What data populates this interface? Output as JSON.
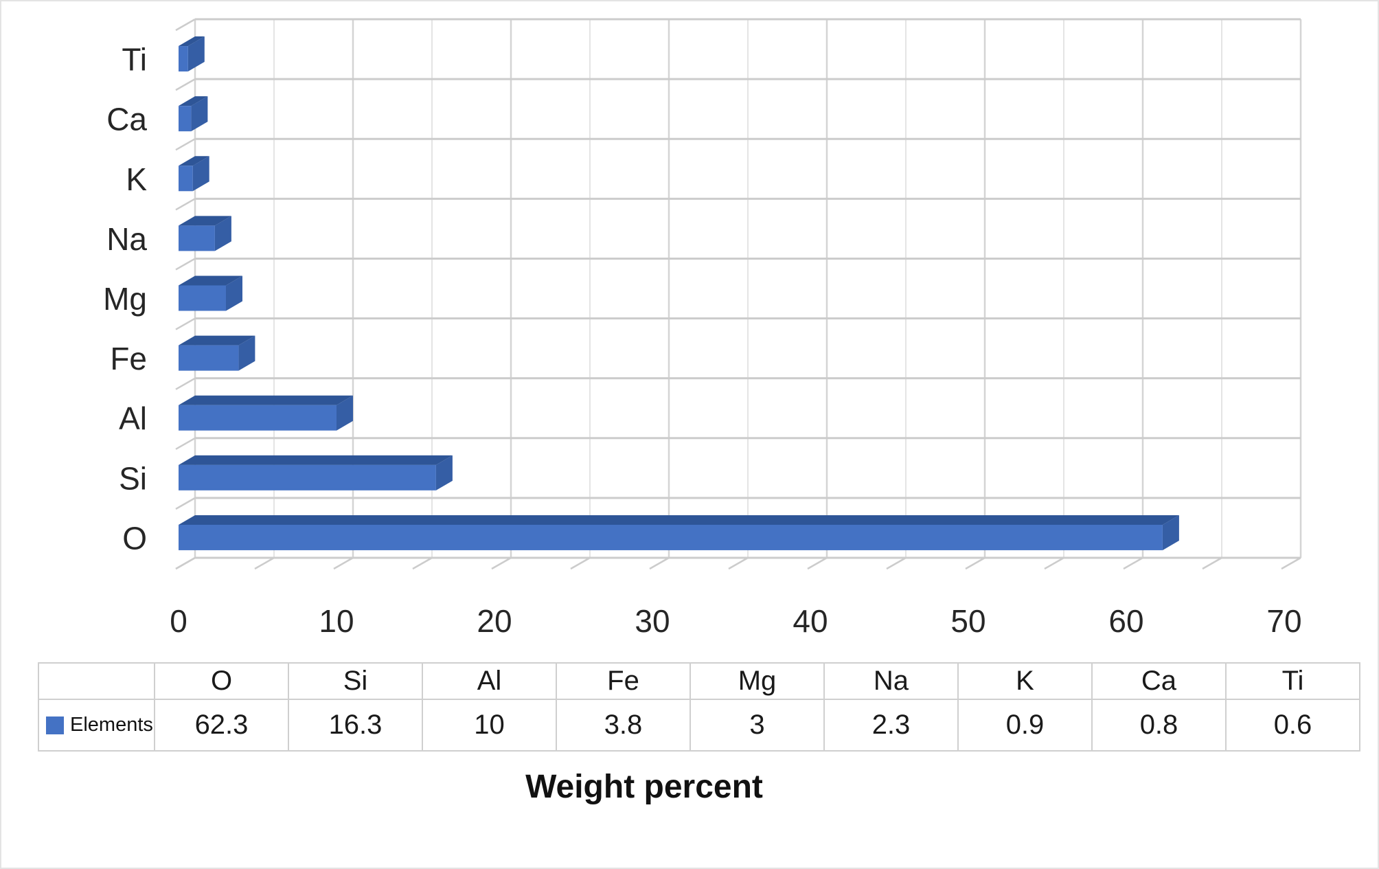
{
  "figure": {
    "axis_title": "Weight percent",
    "legend_label": "Elements"
  },
  "chart_data": {
    "type": "bar",
    "orientation": "horizontal",
    "style": "3d-excel",
    "title": "",
    "xlabel": "Weight percent",
    "categories": [
      "O",
      "Si",
      "Al",
      "Fe",
      "Mg",
      "Na",
      "K",
      "Ca",
      "Ti"
    ],
    "series": [
      {
        "name": "Elements",
        "values": [
          62.3,
          16.3,
          10,
          3.8,
          3,
          2.3,
          0.9,
          0.8,
          0.6
        ]
      }
    ],
    "bar_order_top_to_bottom": [
      "Ti",
      "Ca",
      "K",
      "Na",
      "Mg",
      "Fe",
      "Al",
      "Si",
      "O"
    ],
    "xlim": [
      0,
      70
    ],
    "x_ticks": [
      0,
      10,
      20,
      30,
      40,
      50,
      60,
      70
    ],
    "grid": {
      "minor_step": 5,
      "major_step": 10,
      "gridlines_on": true
    },
    "legend_position": "left-of-data-table",
    "data_table_shown": true,
    "colors": {
      "bar_front": "#4472C4",
      "bar_top": "#2E5597",
      "bar_side": "#355EA5",
      "grid_minor": "#E4E4E4",
      "grid_major": "#D4D4D4",
      "band_line": "#CCCCCC",
      "table_border": "#CFCFCF",
      "legend_marker": "#4472C4",
      "text": "#262626"
    }
  }
}
